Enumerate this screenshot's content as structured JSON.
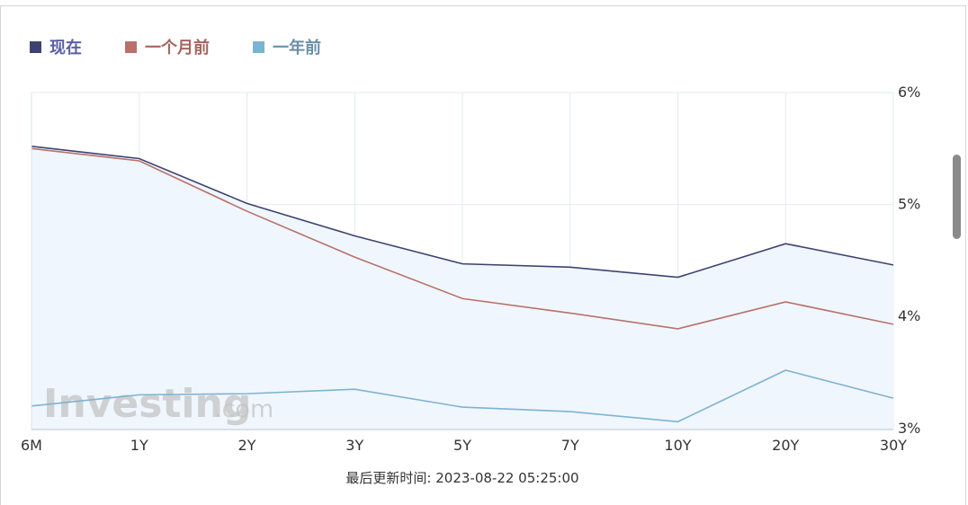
{
  "chart_data": {
    "type": "line",
    "categories": [
      "6M",
      "1Y",
      "2Y",
      "3Y",
      "5Y",
      "7Y",
      "10Y",
      "20Y",
      "30Y"
    ],
    "series": [
      {
        "name": "现在",
        "color": "#3d4370",
        "values": [
          5.52,
          5.41,
          5.01,
          4.72,
          4.47,
          4.44,
          4.35,
          4.65,
          4.46
        ]
      },
      {
        "name": "一个月前",
        "color": "#b8726a",
        "values": [
          5.5,
          5.39,
          4.94,
          4.53,
          4.16,
          4.03,
          3.89,
          4.13,
          3.93
        ]
      },
      {
        "name": "一年前",
        "color": "#7db3d2",
        "values": [
          3.2,
          3.3,
          3.31,
          3.35,
          3.19,
          3.15,
          3.06,
          3.52,
          3.27
        ]
      }
    ],
    "y_ticks": [
      "6%",
      "5%",
      "4%",
      "3%"
    ],
    "ylim": [
      2.99,
      6.0
    ],
    "grid": true,
    "legend_position": "top-left",
    "area_fill_color": "#f0f6fd"
  },
  "footer": {
    "updated_label": "最后更新时间: 2023-08-22 05:25:00"
  },
  "watermark": {
    "brand": "Investing",
    "suffix": ".com"
  }
}
